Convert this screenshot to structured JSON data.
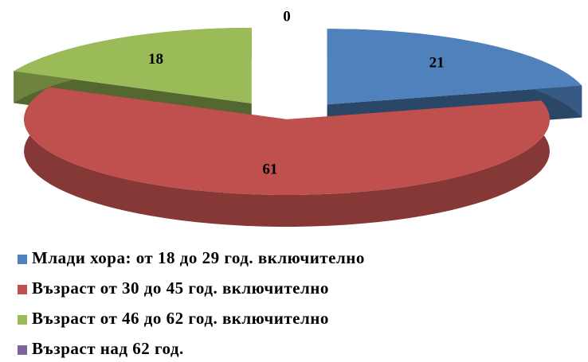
{
  "chart_data": {
    "type": "pie3d",
    "categories": [
      "Млади хора: от 18 до 29 год. включително",
      "Възраст от 30 до 45 год. включително",
      "Възраст от 46 до 62 год. включително",
      "Възраст над 62 год."
    ],
    "values": [
      21,
      61,
      18,
      0
    ],
    "colors": [
      "#4f81bd",
      "#c0504d",
      "#9bbb59",
      "#8064a2"
    ],
    "legend": "bottom"
  }
}
